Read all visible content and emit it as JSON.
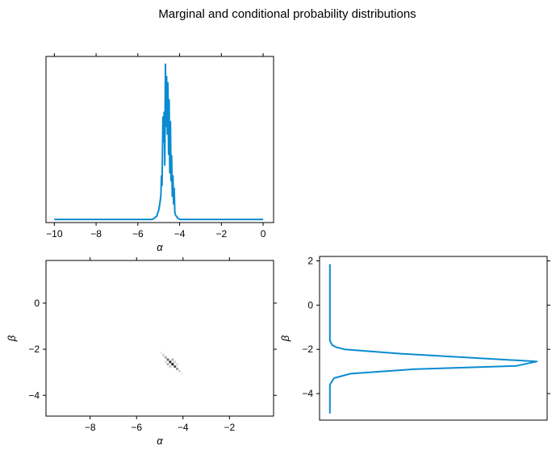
{
  "figure": {
    "title": "Marginal and conditional probability distributions"
  },
  "chart_data": [
    {
      "id": "alpha-marginal",
      "type": "line",
      "xlabel": "α",
      "ylabel": "",
      "xlim": [
        -10.4,
        0.5
      ],
      "ylim": [
        -0.02,
        1.05
      ],
      "xticks": [
        -10,
        -8,
        -6,
        -4,
        -2,
        0
      ],
      "xtick_labels": [
        "−10",
        "−8",
        "−6",
        "−4",
        "−2",
        "0"
      ],
      "yticks": [],
      "grid": false,
      "color": "#0a8bd1",
      "series": [
        {
          "x": [
            -10,
            -5.3,
            -5.1,
            -5.0,
            -4.95,
            -4.9,
            -4.87,
            -4.84,
            -4.8,
            -4.77,
            -4.74,
            -4.71,
            -4.68,
            -4.65,
            -4.62,
            -4.59,
            -4.56,
            -4.53,
            -4.5,
            -4.47,
            -4.44,
            -4.41,
            -4.38,
            -4.35,
            -4.32,
            -4.29,
            -4.26,
            -4.23,
            -4.2,
            -4.15,
            -4.1,
            -4.0,
            -3.8,
            0
          ],
          "y": [
            0.0,
            0.0,
            0.02,
            0.06,
            0.1,
            0.15,
            0.28,
            0.22,
            0.66,
            0.5,
            0.69,
            0.35,
            1.0,
            0.6,
            0.92,
            0.55,
            0.88,
            0.42,
            0.77,
            0.3,
            0.63,
            0.25,
            0.41,
            0.15,
            0.28,
            0.1,
            0.2,
            0.05,
            0.03,
            0.02,
            0.01,
            0.0,
            0.0,
            0.0
          ]
        }
      ]
    },
    {
      "id": "joint-density",
      "type": "heatmap",
      "xlabel": "α",
      "ylabel": "β",
      "xlim": [
        -9.9,
        -0.1
      ],
      "ylim": [
        -4.9,
        1.85
      ],
      "xticks": [
        -8,
        -6,
        -4,
        -2
      ],
      "xtick_labels": [
        "−8",
        "−6",
        "−4",
        "−2"
      ],
      "yticks": [
        0,
        -2,
        -4
      ],
      "ytick_labels": [
        "0",
        "−2",
        "−4"
      ],
      "grid": false,
      "cmap": "gray_r",
      "cells": [
        {
          "alpha": -4.95,
          "beta": -2.15,
          "v": 0.08
        },
        {
          "alpha": -4.85,
          "beta": -2.25,
          "v": 0.18
        },
        {
          "alpha": -4.75,
          "beta": -2.35,
          "v": 0.35
        },
        {
          "alpha": -4.65,
          "beta": -2.45,
          "v": 0.6
        },
        {
          "alpha": -4.55,
          "beta": -2.55,
          "v": 0.85
        },
        {
          "alpha": -4.45,
          "beta": -2.65,
          "v": 0.95
        },
        {
          "alpha": -4.35,
          "beta": -2.75,
          "v": 0.7
        },
        {
          "alpha": -4.25,
          "beta": -2.85,
          "v": 0.4
        },
        {
          "alpha": -4.15,
          "beta": -2.95,
          "v": 0.18
        },
        {
          "alpha": -4.05,
          "beta": -3.05,
          "v": 0.07
        },
        {
          "alpha": -4.65,
          "beta": -2.65,
          "v": 0.3
        },
        {
          "alpha": -4.45,
          "beta": -2.45,
          "v": 0.3
        },
        {
          "alpha": -4.55,
          "beta": -2.75,
          "v": 0.2
        },
        {
          "alpha": -4.35,
          "beta": -2.55,
          "v": 0.2
        },
        {
          "alpha": -4.75,
          "beta": -2.55,
          "v": 0.12
        },
        {
          "alpha": -4.25,
          "beta": -2.65,
          "v": 0.12
        }
      ]
    },
    {
      "id": "beta-marginal",
      "type": "line",
      "orientation": "horizontal",
      "xlabel": "",
      "ylabel": "β",
      "xlim": [
        -0.05,
        1.05
      ],
      "ylim": [
        -5.2,
        2.2
      ],
      "xticks": [],
      "yticks": [
        2,
        0,
        -2,
        -4
      ],
      "ytick_labels": [
        "2",
        "0",
        "−2",
        "−4"
      ],
      "grid": false,
      "color": "#0a8bd1",
      "series": [
        {
          "beta": [
            1.85,
            -1.6,
            -1.8,
            -1.9,
            -2.0,
            -2.2,
            -2.55,
            -2.75,
            -2.9,
            -3.1,
            -3.3,
            -3.45,
            -3.6,
            -4.9
          ],
          "density": [
            0.0,
            0.0,
            0.01,
            0.03,
            0.07,
            0.35,
            1.0,
            0.9,
            0.4,
            0.1,
            0.02,
            0.01,
            0.0,
            0.0
          ]
        }
      ]
    }
  ]
}
